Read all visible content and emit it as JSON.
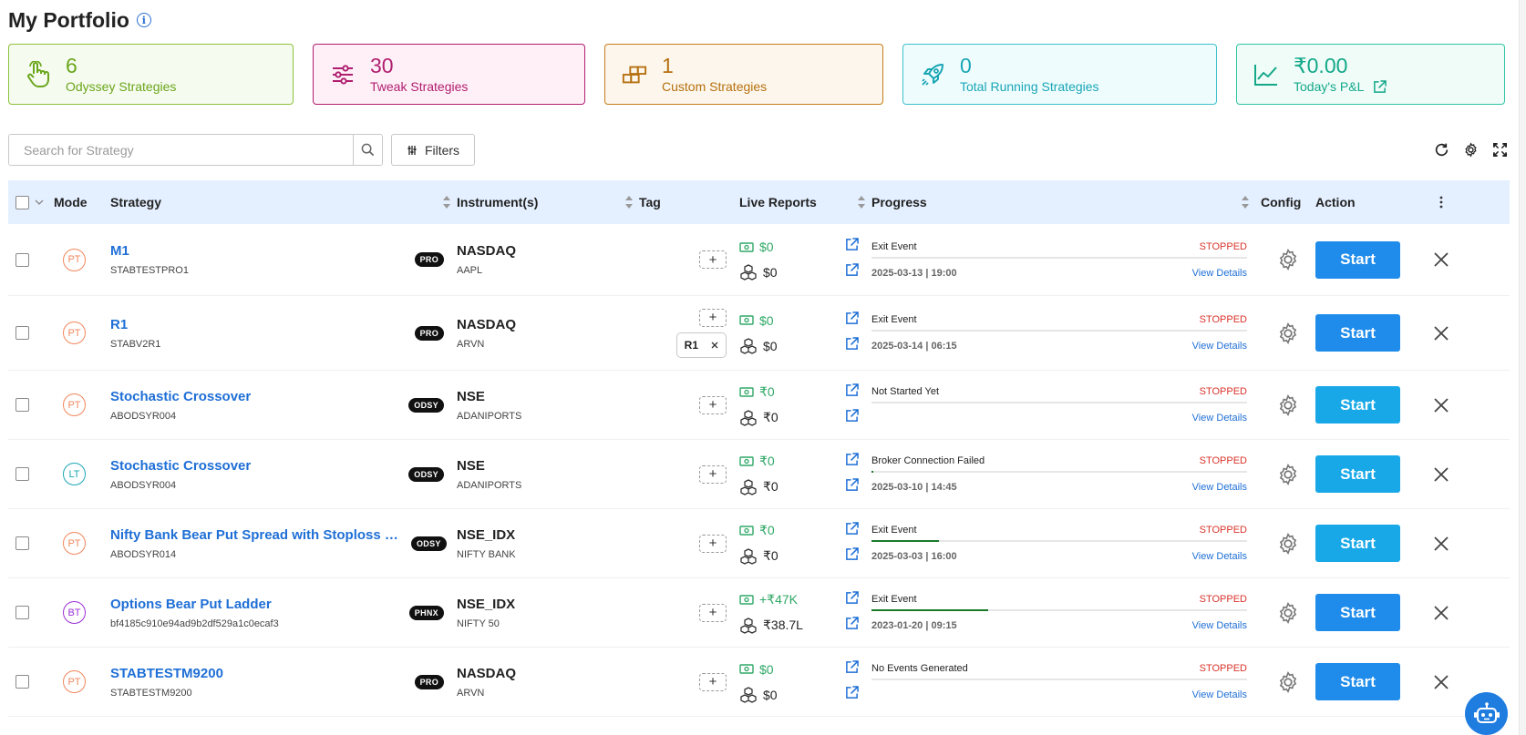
{
  "page": {
    "title": "My Portfolio"
  },
  "cards": [
    {
      "value": "6",
      "label": "Odyssey Strategies",
      "icon": "hand-pointer-icon",
      "color": "#6aa61c",
      "bg": "#f6fbef",
      "border": "#8dc23b",
      "width": 313
    },
    {
      "value": "30",
      "label": "Tweak Strategies",
      "icon": "sliders-icon",
      "color": "#b01e6f",
      "bg": "#fff0f7",
      "border": "#b01e6f",
      "width": 299
    },
    {
      "value": "1",
      "label": "Custom Strategies",
      "icon": "blocks-icon",
      "color": "#b5700f",
      "bg": "#fdf6ec",
      "border": "#c47d1c",
      "width": 306
    },
    {
      "value": "0",
      "label": "Total Running Strategies",
      "icon": "rocket-icon",
      "color": "#1aa6b5",
      "bg": "#eefcfd",
      "border": "#3fc0cc",
      "width": 345
    },
    {
      "value": "₹0.00",
      "label": "Today's P&L",
      "icon": "line-chart-icon",
      "color": "#14a889",
      "bg": "#effcf8",
      "border": "#2fc4a3",
      "width": 295
    }
  ],
  "search": {
    "placeholder": "Search for Strategy"
  },
  "filters": {
    "label": "Filters"
  },
  "table": {
    "headers": {
      "mode": "Mode",
      "strategy": "Strategy",
      "instruments": "Instrument(s)",
      "tag": "Tag",
      "live_reports": "Live Reports",
      "progress": "Progress",
      "config": "Config",
      "action": "Action"
    },
    "rows": [
      {
        "mode": "PT",
        "mode_color": "#f0865c",
        "name": "M1",
        "code": "STABTESTPRO1",
        "pill": "PRO",
        "exchange": "NASDAQ",
        "symbol": "AAPL",
        "tags": [],
        "pnl": "$0",
        "pnl_color": "#2fa866",
        "capital": "$0",
        "event": "Exit Event",
        "status": "STOPPED",
        "progress": 0,
        "date": "2025-03-13 | 19:00",
        "details": "View Details",
        "start": "Start",
        "start_color": "#1f8ceb",
        "height": 79
      },
      {
        "mode": "PT",
        "mode_color": "#f0865c",
        "name": "R1",
        "code": "STABV2R1",
        "pill": "PRO",
        "exchange": "NASDAQ",
        "symbol": "ARVN",
        "tags": [
          "R1"
        ],
        "pnl": "$0",
        "pnl_color": "#2fa866",
        "capital": "$0",
        "event": "Exit Event",
        "status": "STOPPED",
        "progress": 0,
        "date": "2025-03-14 | 06:15",
        "details": "View Details",
        "start": "Start",
        "start_color": "#1f8ceb",
        "height": 82
      },
      {
        "mode": "PT",
        "mode_color": "#f0865c",
        "name": "Stochastic Crossover",
        "code": "ABODSYR004",
        "pill": "ODSY",
        "exchange": "NSE",
        "symbol": "ADANIPORTS",
        "tags": [],
        "pnl": "₹0",
        "pnl_color": "#2fa866",
        "capital": "₹0",
        "event": "Not Started Yet",
        "status": "STOPPED",
        "progress": 0,
        "date": "",
        "details": "View Details",
        "start": "Start",
        "start_color": "#18a8e8",
        "height": 76
      },
      {
        "mode": "LT",
        "mode_color": "#1aa6b5",
        "name": "Stochastic Crossover",
        "code": "ABODSYR004",
        "pill": "ODSY",
        "exchange": "NSE",
        "symbol": "ADANIPORTS",
        "tags": [],
        "pnl": "₹0",
        "pnl_color": "#2fa866",
        "capital": "₹0",
        "event": "Broker Connection Failed",
        "status": "STOPPED",
        "progress": 0.004,
        "date": "2025-03-10 | 14:45",
        "details": "View Details",
        "start": "Start",
        "start_color": "#18a8e8",
        "height": 76
      },
      {
        "mode": "PT",
        "mode_color": "#f0865c",
        "name": "Nifty Bank Bear Put Spread with Stoploss on…",
        "code": "ABODSYR014",
        "pill": "ODSY",
        "exchange": "NSE_IDX",
        "symbol": "NIFTY BANK",
        "tags": [],
        "pnl": "₹0",
        "pnl_color": "#2fa866",
        "capital": "₹0",
        "event": "Exit Event",
        "status": "STOPPED",
        "progress": 0.18,
        "date": "2025-03-03 | 16:00",
        "details": "View Details",
        "start": "Start",
        "start_color": "#18a8e8",
        "height": 76
      },
      {
        "mode": "BT",
        "mode_color": "#9b2fd6",
        "name": "Options Bear Put Ladder",
        "code": "bf4185c910e94ad9b2df529a1c0ecaf3",
        "pill": "PHNX",
        "exchange": "NSE_IDX",
        "symbol": "NIFTY 50",
        "tags": [],
        "pnl": "+₹47K",
        "pnl_color": "#2fa866",
        "capital": "₹38.7L",
        "event": "Exit Event",
        "status": "STOPPED",
        "progress": 0.31,
        "date": "2023-01-20 | 09:15",
        "details": "View Details",
        "start": "Start",
        "start_color": "#1f8ceb",
        "height": 76
      },
      {
        "mode": "PT",
        "mode_color": "#f0865c",
        "name": "STABTESTM9200",
        "code": "STABTESTM9200",
        "pill": "PRO",
        "exchange": "NASDAQ",
        "symbol": "ARVN",
        "tags": [],
        "pnl": "$0",
        "pnl_color": "#2fa866",
        "capital": "$0",
        "event": "No Events Generated",
        "status": "STOPPED",
        "progress": 0,
        "date": "",
        "details": "View Details",
        "start": "Start",
        "start_color": "#1f8ceb",
        "height": 76
      }
    ]
  }
}
